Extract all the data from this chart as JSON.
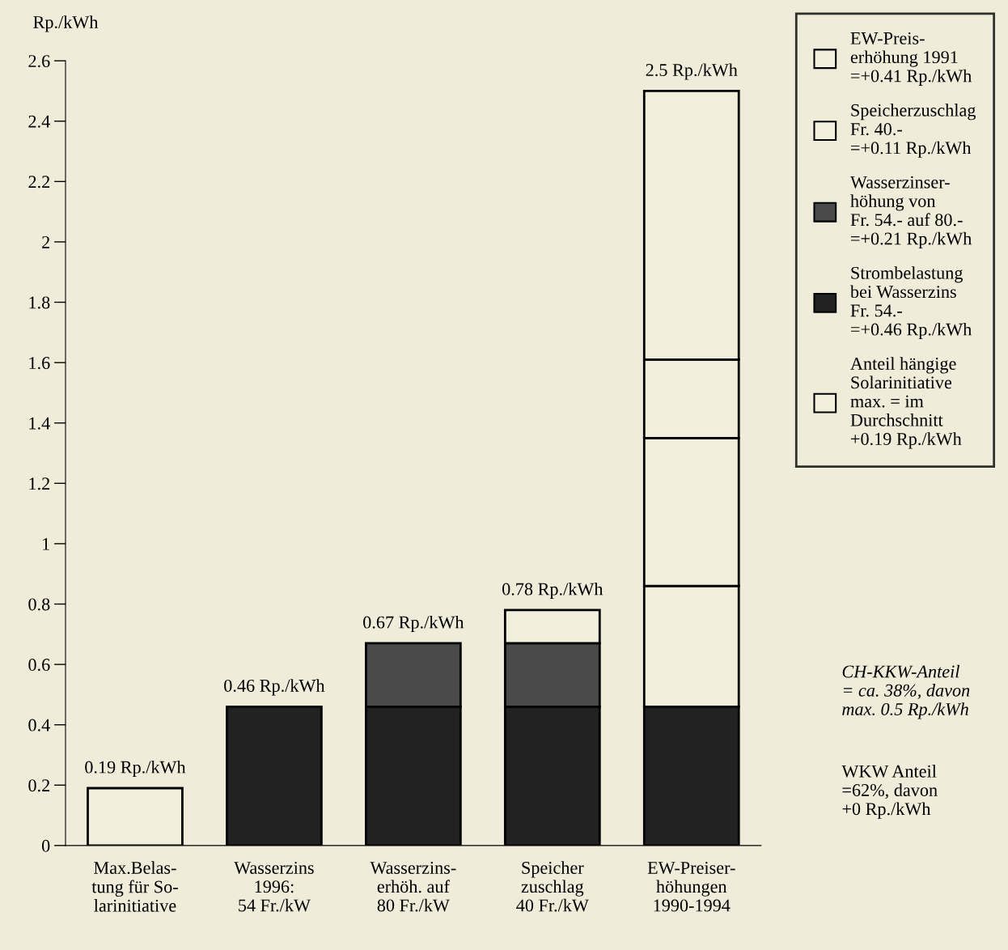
{
  "chart_data": {
    "type": "bar",
    "stacked": true,
    "ylabel": "Rp./kWh",
    "categories": [
      "Max.Belas-\ntung für So-\nlarinitiative",
      "Wasserzins\n1996:\n54 Fr./kW",
      "Wasserzins-\nerhöh. auf\n80 Fr./kW",
      "Speicher\nzuschlag\n40 Fr./kW",
      "EW-Preiser-\nhöhungen\n1990-1994"
    ],
    "series": [
      {
        "name": "Anteil hängige\nSolarinitiative\nmax. = im\nDurchschnitt\n+0.19 Rp./kWh",
        "color": "#f1eedc",
        "values": [
          0.19,
          null,
          null,
          null,
          null
        ]
      },
      {
        "name": "Strombelastung\nbei Wasserzins\nFr. 54.-\n=+0.46 Rp./kWh",
        "color": "#222222",
        "values": [
          null,
          0.46,
          0.46,
          0.46,
          0.46
        ]
      },
      {
        "name": "Wasserzinser-\nhöhung von\nFr. 54.- auf 80.-\n=+0.21 Rp./kWh",
        "color": "#4a4a4a",
        "values": [
          null,
          null,
          0.21,
          0.21,
          null
        ]
      },
      {
        "name": "Speicherzuschlag\nFr. 40.-\n=+0.11 Rp./kWh",
        "color": "#f1eedc",
        "values": [
          null,
          null,
          null,
          0.11,
          null
        ]
      },
      {
        "name": "EW-Preis-\nerhöhung 1991\n=+0.41 Rp./kWh",
        "color": "#f1eedc",
        "values": [
          null,
          null,
          null,
          null,
          0.4
        ]
      },
      {
        "color": "#f1eedc",
        "values": [
          null,
          null,
          null,
          null,
          0.49
        ]
      },
      {
        "color": "#f1eedc",
        "values": [
          null,
          null,
          null,
          null,
          0.26
        ]
      },
      {
        "color": "#f1eedc",
        "values": [
          null,
          null,
          null,
          null,
          0.89
        ]
      }
    ],
    "totals": [
      "0.19 Rp./kWh",
      "0.46 Rp./kWh",
      "0.67 Rp./kWh",
      "0.78 Rp./kWh",
      "2.5 Rp./kWh"
    ],
    "ylim": [
      0,
      2.6
    ],
    "yticks": [
      0,
      0.2,
      0.4,
      0.6,
      0.8,
      1,
      1.2,
      1.4,
      1.6,
      1.8,
      2,
      2.2,
      2.4,
      2.6
    ],
    "grid": false,
    "legend": "right",
    "annotations": [
      "CH-KKW-Anteil\n= ca. 38%, davon\nmax. 0.5 Rp./kWh",
      "WKW Anteil\n=62%, davon\n+0 Rp./kWh"
    ]
  }
}
